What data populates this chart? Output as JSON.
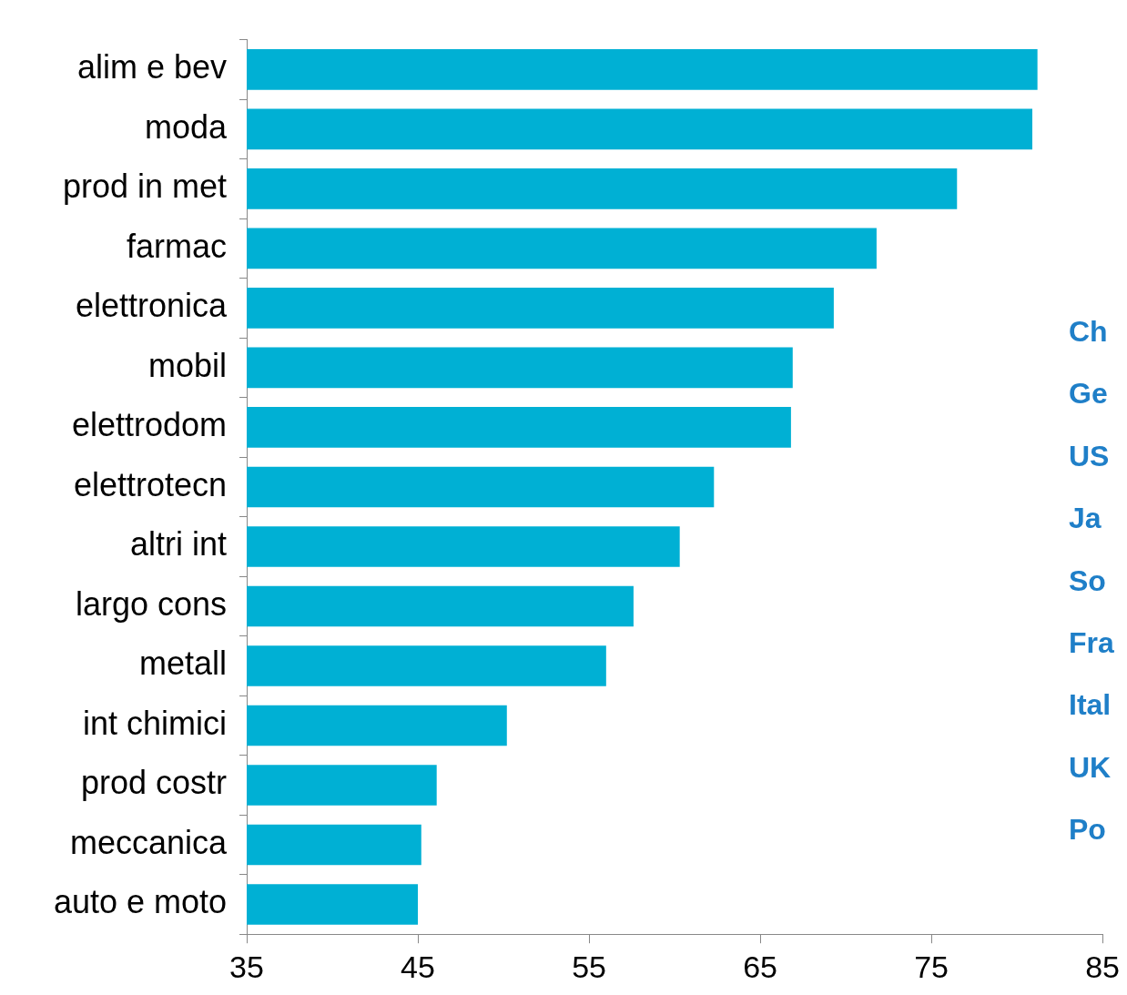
{
  "chart_data": {
    "type": "bar",
    "orientation": "horizontal",
    "categories": [
      "alim e bev",
      "moda",
      "prod in met",
      "farmac",
      "elettronica",
      "mobil",
      "elettrodom",
      "elettrotecn",
      "altri int",
      "largo cons",
      "metall",
      "int chimici",
      "prod costr",
      "meccanica",
      "auto e moto"
    ],
    "values": [
      81.2,
      80.9,
      76.5,
      71.8,
      69.3,
      66.9,
      66.8,
      62.3,
      60.3,
      57.6,
      56.0,
      50.2,
      46.1,
      45.2,
      45.0
    ],
    "color": "#00b0d4",
    "xlim": [
      35,
      85
    ],
    "xticks": [
      35,
      45,
      55,
      65,
      75,
      85
    ],
    "grid": false,
    "legend": false,
    "annotations": [
      "Ch",
      "Ge",
      "US",
      "Ja",
      "So",
      "Fra",
      "Ital",
      "UK",
      "Po"
    ]
  }
}
